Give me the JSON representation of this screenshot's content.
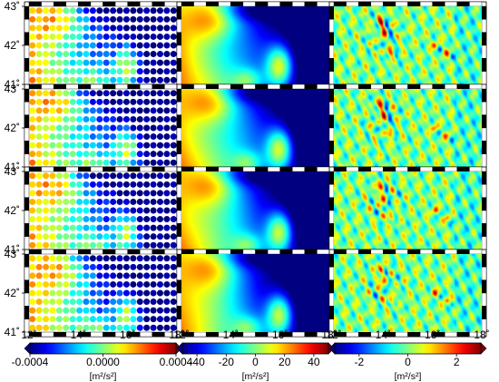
{
  "chart_data": {
    "type": "heatmap",
    "layout": {
      "rows": 4,
      "columns": 3
    },
    "map_extent": {
      "lon": [
        12,
        18
      ],
      "lat": [
        41,
        43
      ]
    },
    "lon_ticks": [
      "12˚",
      "14˚",
      "16˚",
      "18˚"
    ],
    "lat_ticks": [
      "43˚",
      "42˚",
      "41˚"
    ],
    "colormap": "jet",
    "columns": [
      {
        "style": "dot-grid",
        "dot_grid": {
          "cols": 22,
          "rows": 9
        },
        "range": [
          -0.0004,
          0.0004
        ],
        "colorbar_ticks": [
          "-0.0004",
          "0.0000",
          "0.0004"
        ],
        "unit": "[m²/s²]"
      },
      {
        "style": "smooth-field",
        "range": [
          -50,
          50
        ],
        "colorbar_ticks": [
          "-40",
          "-20",
          "0",
          "20",
          "40"
        ],
        "unit": "[m²/s²]"
      },
      {
        "style": "residual-field",
        "range": [
          -3,
          3
        ],
        "colorbar_ticks": [
          "-2",
          "0",
          "2"
        ],
        "unit": "[m²/s²]"
      }
    ],
    "field_structure": {
      "high_regions": [
        {
          "name": "north-west ridge",
          "lon": 12.8,
          "lat": 42.7
        },
        {
          "name": "south-central lobe",
          "lon": 16.0,
          "lat": 41.4
        }
      ],
      "low_regions": [
        {
          "name": "east",
          "lon": 17.8,
          "lat": 42.5
        }
      ],
      "residual_anomalies": [
        {
          "lon": 13.9,
          "lat": 42.6,
          "value": 2.8
        },
        {
          "lon": 14.0,
          "lat": 42.3,
          "value": 2.6
        },
        {
          "lon": 14.3,
          "lat": 41.8,
          "value": 2.0
        },
        {
          "lon": 16.1,
          "lat": 42.0,
          "value": 1.8
        },
        {
          "lon": 16.6,
          "lat": 41.8,
          "value": 1.5
        }
      ]
    }
  }
}
